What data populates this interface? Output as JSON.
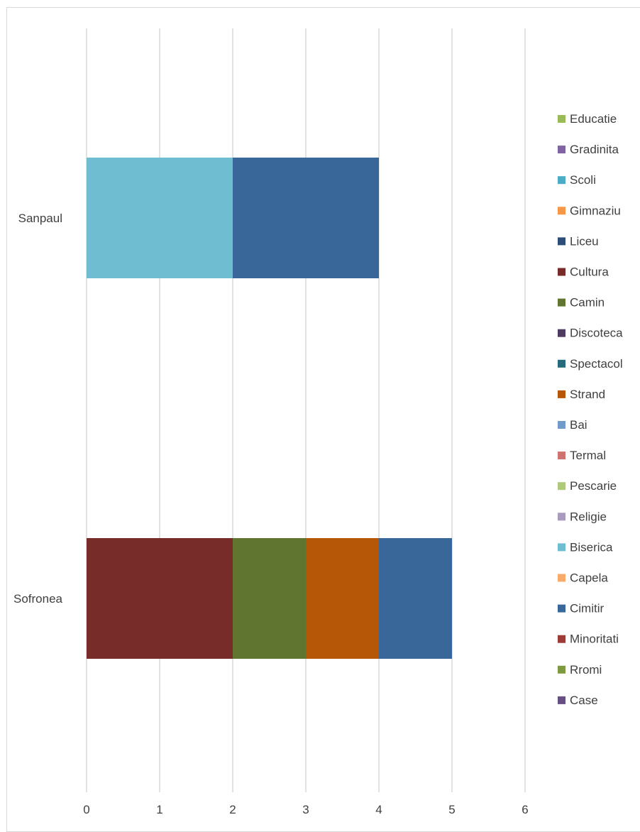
{
  "chart_data": {
    "type": "bar",
    "orientation": "horizontal",
    "stacked": true,
    "categories": [
      "Sanpaul",
      "Sofronea"
    ],
    "xlim": [
      0,
      6
    ],
    "x_ticks": [
      "0",
      "1",
      "2",
      "3",
      "4",
      "5",
      "6"
    ],
    "grid": true,
    "legend_position": "right",
    "series": [
      {
        "name": "Educatie",
        "color": "#9BBB59",
        "values": [
          0,
          0
        ]
      },
      {
        "name": "Gradinita",
        "color": "#8064A2",
        "values": [
          0,
          0
        ]
      },
      {
        "name": "Scoli",
        "color": "#4BACC6",
        "values": [
          0,
          0
        ]
      },
      {
        "name": "Gimnaziu",
        "color": "#F79646",
        "values": [
          0,
          0
        ]
      },
      {
        "name": "Liceu",
        "color": "#2C4D75",
        "values": [
          0,
          0
        ]
      },
      {
        "name": "Cultura",
        "color": "#772C2A",
        "values": [
          0,
          2
        ]
      },
      {
        "name": "Camin",
        "color": "#5F7530",
        "values": [
          0,
          1
        ]
      },
      {
        "name": "Discoteca",
        "color": "#4D3B62",
        "values": [
          0,
          0
        ]
      },
      {
        "name": "Spectacol",
        "color": "#276A7C",
        "values": [
          0,
          0
        ]
      },
      {
        "name": "Strand",
        "color": "#B65708",
        "values": [
          0,
          1
        ]
      },
      {
        "name": "Bai",
        "color": "#729ACA",
        "values": [
          0,
          0
        ]
      },
      {
        "name": "Termal",
        "color": "#CD7371",
        "values": [
          0,
          0
        ]
      },
      {
        "name": "Pescarie",
        "color": "#AFC97A",
        "values": [
          0,
          0
        ]
      },
      {
        "name": "Religie",
        "color": "#A99BBD",
        "values": [
          0,
          0
        ]
      },
      {
        "name": "Biserica",
        "color": "#6FBDD1",
        "values": [
          2,
          0
        ]
      },
      {
        "name": "Capela",
        "color": "#F9AB6B",
        "values": [
          0,
          0
        ]
      },
      {
        "name": "Cimitir",
        "color": "#3A6799",
        "values": [
          2,
          1
        ]
      },
      {
        "name": "Minoritati",
        "color": "#9C3A38",
        "values": [
          0,
          0
        ]
      },
      {
        "name": "Rromi",
        "color": "#7E9A40",
        "values": [
          0,
          0
        ]
      },
      {
        "name": "Case",
        "color": "#664F82",
        "values": [
          0,
          0
        ]
      }
    ]
  }
}
